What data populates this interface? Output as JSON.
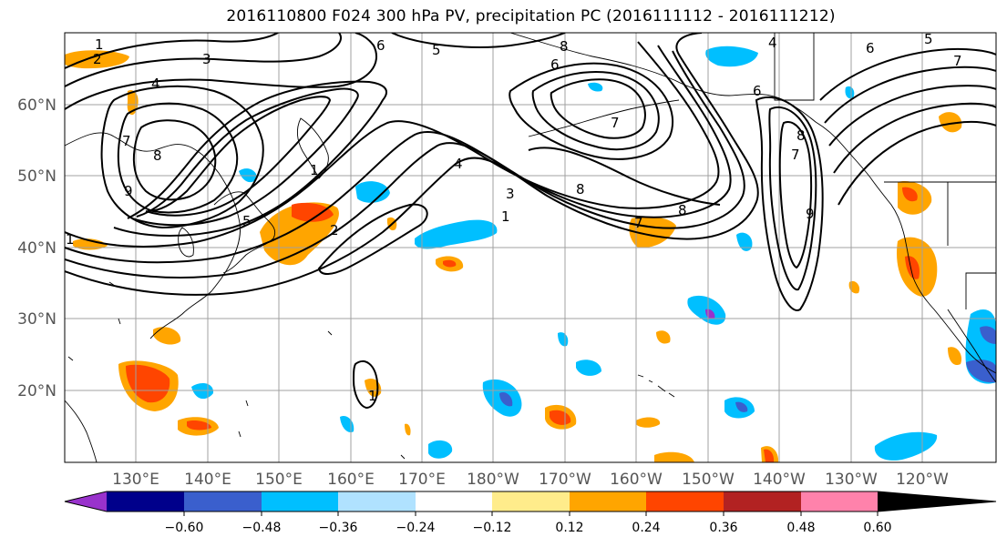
{
  "title": "2016110800 F024 300 hPa PV, precipitation PC (2016111112 - 2016111212)",
  "map": {
    "lat_labels": [
      "60°N",
      "50°N",
      "40°N",
      "30°N",
      "20°N"
    ],
    "lon_labels": [
      "130°E",
      "140°E",
      "150°E",
      "160°E",
      "170°E",
      "180°W",
      "170°W",
      "160°W",
      "150°W",
      "140°W",
      "130°W",
      "120°W"
    ],
    "pv_contour_labels": [
      "1",
      "2",
      "3",
      "4",
      "5",
      "6",
      "7",
      "8",
      "9"
    ]
  },
  "colorbar": {
    "ticks": [
      "−0.60",
      "−0.48",
      "−0.36",
      "−0.24",
      "−0.12",
      "0.12",
      "0.24",
      "0.36",
      "0.48",
      "0.60"
    ],
    "colors": [
      "#9932cc",
      "#00008b",
      "#3a5fcd",
      "#00bfff",
      "#b0e2ff",
      "#ffffff",
      "#ffec8b",
      "#ffa500",
      "#ff4500",
      "#b22222",
      "#ff82ab"
    ]
  },
  "colors": {
    "land_line": "#000000",
    "grid": "#a0a0a0",
    "pv_line": "#000000"
  }
}
